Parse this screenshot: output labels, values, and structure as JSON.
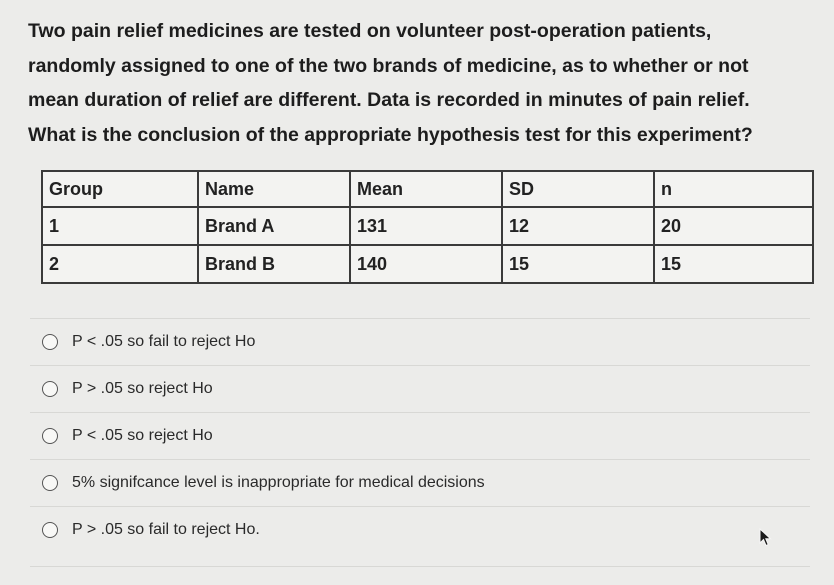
{
  "question": {
    "lines": [
      "Two pain relief medicines are tested on volunteer post-operation patients,",
      "randomly assigned to one of the two brands of medicine, as to whether or not",
      "mean duration of relief are different. Data is recorded in minutes of pain relief.",
      "What is the conclusion of the appropriate hypothesis test for this experiment?"
    ]
  },
  "table": {
    "headers": [
      "Group",
      "Name",
      "Mean",
      "SD",
      "n"
    ],
    "rows": [
      [
        "1",
        "Brand A",
        "131",
        "12",
        "20"
      ],
      [
        "2",
        "Brand B",
        "140",
        "15",
        "15"
      ]
    ]
  },
  "options": [
    "P < .05 so fail to reject Ho",
    "P > .05 so reject Ho",
    "P < .05 so reject Ho",
    "5% signifcance level is inappropriate for medical decisions",
    "P > .05 so fail to reject Ho."
  ],
  "colors": {
    "background": "#ececea",
    "table_border": "#3a3a3a",
    "text": "#1d1d1d"
  }
}
